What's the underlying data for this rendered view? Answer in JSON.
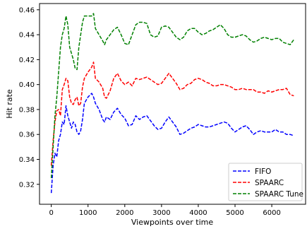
{
  "chart_data": {
    "type": "line",
    "title": "",
    "xlabel": "Viewpoints over time",
    "ylabel": "Hit rate",
    "xlim": [
      -320,
      6920
    ],
    "ylim": [
      0.304,
      0.465
    ],
    "xticks": [
      0,
      1000,
      2000,
      3000,
      4000,
      5000,
      6000
    ],
    "yticks": [
      0.32,
      0.34,
      0.36,
      0.38,
      0.4,
      0.42,
      0.44,
      0.46
    ],
    "ytick_labels": [
      "0.32",
      "0.34",
      "0.36",
      "0.38",
      "0.40",
      "0.42",
      "0.44",
      "0.46"
    ],
    "grid": false,
    "legend_position": "lower-right",
    "series": [
      {
        "name": "FIFO",
        "color": "#0000ff",
        "style": "dashed",
        "x": [
          0,
          50,
          100,
          150,
          200,
          250,
          300,
          350,
          400,
          450,
          500,
          550,
          600,
          650,
          700,
          750,
          800,
          850,
          900,
          1000,
          1100,
          1150,
          1200,
          1300,
          1400,
          1450,
          1500,
          1600,
          1700,
          1800,
          1900,
          2000,
          2100,
          2200,
          2300,
          2400,
          2500,
          2600,
          2700,
          2800,
          2900,
          3000,
          3100,
          3200,
          3300,
          3400,
          3500,
          3600,
          3700,
          3800,
          3900,
          4000,
          4100,
          4200,
          4300,
          4400,
          4500,
          4600,
          4700,
          4800,
          4900,
          5000,
          5100,
          5200,
          5300,
          5400,
          5500,
          5600,
          5700,
          5800,
          5900,
          6000,
          6100,
          6200,
          6300,
          6400,
          6500,
          6600
        ],
        "values": [
          0.313,
          0.335,
          0.345,
          0.342,
          0.355,
          0.36,
          0.37,
          0.368,
          0.383,
          0.375,
          0.37,
          0.365,
          0.37,
          0.368,
          0.362,
          0.36,
          0.363,
          0.372,
          0.385,
          0.39,
          0.393,
          0.39,
          0.385,
          0.38,
          0.372,
          0.37,
          0.374,
          0.372,
          0.378,
          0.381,
          0.376,
          0.373,
          0.367,
          0.368,
          0.375,
          0.372,
          0.374,
          0.375,
          0.371,
          0.367,
          0.364,
          0.365,
          0.37,
          0.374,
          0.37,
          0.366,
          0.36,
          0.361,
          0.363,
          0.365,
          0.366,
          0.368,
          0.367,
          0.366,
          0.366,
          0.367,
          0.368,
          0.369,
          0.37,
          0.369,
          0.365,
          0.362,
          0.364,
          0.366,
          0.367,
          0.364,
          0.36,
          0.362,
          0.363,
          0.362,
          0.362,
          0.362,
          0.364,
          0.362,
          0.362,
          0.36,
          0.36,
          0.359
        ]
      },
      {
        "name": "SPAARC",
        "color": "#ff0000",
        "style": "dashed",
        "x": [
          0,
          50,
          100,
          150,
          200,
          250,
          300,
          350,
          400,
          450,
          500,
          550,
          600,
          650,
          700,
          750,
          800,
          850,
          900,
          1000,
          1100,
          1150,
          1200,
          1300,
          1400,
          1450,
          1500,
          1600,
          1700,
          1800,
          1900,
          2000,
          2100,
          2200,
          2300,
          2400,
          2500,
          2600,
          2700,
          2800,
          2900,
          3000,
          3100,
          3200,
          3300,
          3400,
          3500,
          3600,
          3700,
          3800,
          3900,
          4000,
          4100,
          4200,
          4300,
          4400,
          4500,
          4600,
          4700,
          4800,
          4900,
          5000,
          5100,
          5200,
          5300,
          5400,
          5500,
          5600,
          5700,
          5800,
          5900,
          6000,
          6100,
          6200,
          6300,
          6400,
          6500,
          6600
        ],
        "values": [
          0.335,
          0.355,
          0.37,
          0.379,
          0.38,
          0.375,
          0.396,
          0.4,
          0.405,
          0.403,
          0.39,
          0.385,
          0.384,
          0.388,
          0.39,
          0.383,
          0.385,
          0.398,
          0.405,
          0.41,
          0.414,
          0.418,
          0.405,
          0.402,
          0.397,
          0.39,
          0.389,
          0.395,
          0.405,
          0.409,
          0.403,
          0.4,
          0.402,
          0.399,
          0.405,
          0.404,
          0.405,
          0.406,
          0.404,
          0.402,
          0.4,
          0.401,
          0.405,
          0.409,
          0.405,
          0.401,
          0.396,
          0.397,
          0.4,
          0.401,
          0.404,
          0.405,
          0.404,
          0.402,
          0.401,
          0.399,
          0.399,
          0.4,
          0.4,
          0.399,
          0.398,
          0.396,
          0.396,
          0.397,
          0.396,
          0.396,
          0.396,
          0.394,
          0.394,
          0.393,
          0.395,
          0.394,
          0.395,
          0.396,
          0.396,
          0.397,
          0.392,
          0.391
        ]
      },
      {
        "name": "SPAARC Tune",
        "color": "#008000",
        "style": "dashed",
        "x": [
          0,
          50,
          100,
          150,
          200,
          250,
          300,
          350,
          400,
          450,
          500,
          550,
          600,
          650,
          700,
          750,
          800,
          850,
          900,
          1000,
          1100,
          1150,
          1200,
          1300,
          1400,
          1450,
          1500,
          1600,
          1700,
          1800,
          1900,
          2000,
          2100,
          2200,
          2300,
          2400,
          2500,
          2600,
          2700,
          2800,
          2900,
          3000,
          3100,
          3200,
          3300,
          3400,
          3500,
          3600,
          3700,
          3800,
          3900,
          4000,
          4100,
          4200,
          4300,
          4400,
          4500,
          4600,
          4700,
          4800,
          4900,
          5000,
          5100,
          5200,
          5300,
          5400,
          5500,
          5600,
          5700,
          5800,
          5900,
          6000,
          6100,
          6200,
          6300,
          6400,
          6500,
          6600
        ],
        "values": [
          0.325,
          0.35,
          0.375,
          0.39,
          0.41,
          0.43,
          0.44,
          0.445,
          0.455,
          0.448,
          0.43,
          0.425,
          0.42,
          0.413,
          0.412,
          0.43,
          0.44,
          0.45,
          0.455,
          0.455,
          0.455,
          0.457,
          0.445,
          0.44,
          0.435,
          0.432,
          0.436,
          0.44,
          0.444,
          0.446,
          0.44,
          0.433,
          0.432,
          0.44,
          0.448,
          0.45,
          0.45,
          0.449,
          0.44,
          0.438,
          0.439,
          0.446,
          0.447,
          0.446,
          0.442,
          0.438,
          0.436,
          0.438,
          0.443,
          0.445,
          0.445,
          0.442,
          0.44,
          0.441,
          0.443,
          0.444,
          0.446,
          0.448,
          0.445,
          0.44,
          0.438,
          0.438,
          0.439,
          0.44,
          0.439,
          0.436,
          0.434,
          0.435,
          0.437,
          0.438,
          0.437,
          0.436,
          0.437,
          0.437,
          0.434,
          0.433,
          0.432,
          0.436
        ]
      }
    ]
  }
}
